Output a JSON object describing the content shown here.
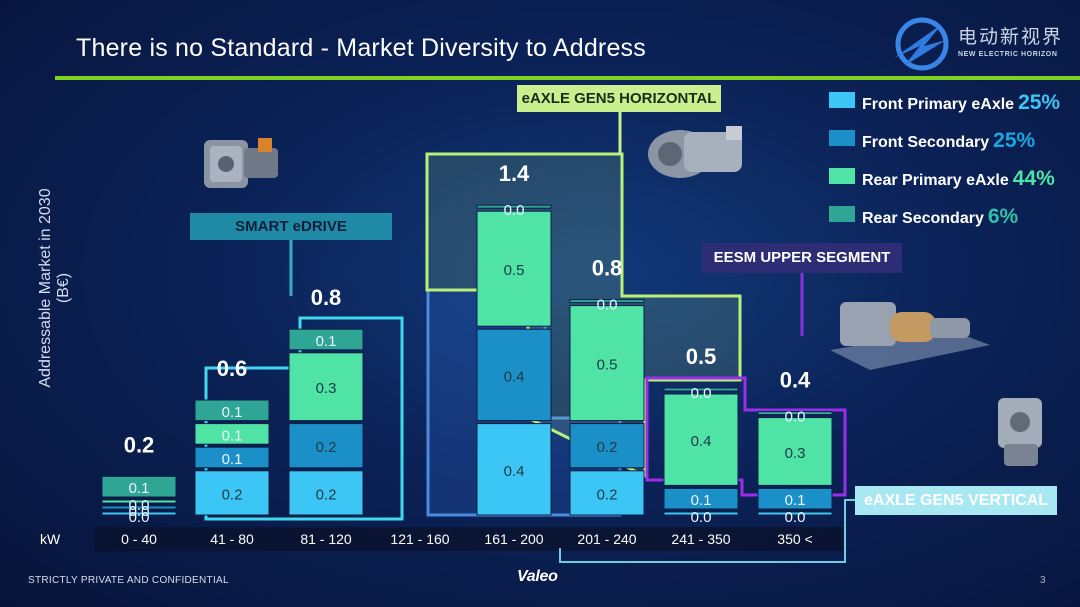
{
  "slide": {
    "title": "There is no Standard - Market Diversity to Address",
    "footer_left": "STRICTLY PRIVATE AND CONFIDENTIAL",
    "footer_brand": "Valeo",
    "page_number": "3",
    "watermark_zh": "电动新视界",
    "watermark_en": "NEW ELECTRIC HORIZON"
  },
  "colors": {
    "accent": "#7ed321",
    "front_primary": "#3cc6f5",
    "front_secondary": "#1a8fc8",
    "rear_primary": "#4fe3a6",
    "rear_secondary": "#2fa596",
    "cyan_outline": "#3fd8ee",
    "green_outline": "#b9f07a",
    "blue_outline": "#4a8be0",
    "purple_outline": "#9b2ee8"
  },
  "legend": [
    {
      "label": "Front Primary eAxle",
      "pct": "25%",
      "color": "#3cc6f5"
    },
    {
      "label": "Front Secondary",
      "pct": "25%",
      "color": "#1a8fc8"
    },
    {
      "label": "Rear Primary eAxle",
      "pct": "44%",
      "color": "#4fe3a6"
    },
    {
      "label": "Rear Secondary",
      "pct": "6%",
      "color": "#2fa596"
    }
  ],
  "callouts": [
    {
      "id": "smart",
      "text": "SMART eDRIVE"
    },
    {
      "id": "gen5h",
      "text": "eAXLE GEN5 HORIZONTAL"
    },
    {
      "id": "eesm",
      "text": "EESM UPPER SEGMENT"
    },
    {
      "id": "gen5v",
      "text": "eAXLE GEN5 VERTICAL"
    }
  ],
  "chart_data": {
    "type": "bar",
    "stacked": true,
    "title": "There is no Standard - Market Diversity to Address",
    "ylabel": "Addressable Market in 2030 (B€)",
    "xlabel": "kW",
    "categories": [
      "0 - 40",
      "41 - 80",
      "81 - 120",
      "121 - 160",
      "161 - 200",
      "201 - 240",
      "241 - 350",
      "350 <"
    ],
    "totals": [
      0.2,
      0.6,
      0.8,
      null,
      1.4,
      0.8,
      0.5,
      0.4
    ],
    "series": [
      {
        "name": "Front Primary eAxle",
        "values": [
          0.0,
          0.2,
          0.2,
          0,
          0.4,
          0.2,
          0.0,
          0.0
        ]
      },
      {
        "name": "Front Secondary",
        "values": [
          0.0,
          0.1,
          0.2,
          0,
          0.4,
          0.2,
          0.1,
          0.1
        ]
      },
      {
        "name": "Rear Primary eAxle",
        "values": [
          0.0,
          0.1,
          0.3,
          0,
          0.5,
          0.5,
          0.4,
          0.3
        ]
      },
      {
        "name": "Rear Secondary",
        "values": [
          0.1,
          0.1,
          0.1,
          0,
          0.0,
          0.0,
          0.0,
          0.0
        ]
      }
    ],
    "grid": false,
    "legend_position": "top-right"
  }
}
